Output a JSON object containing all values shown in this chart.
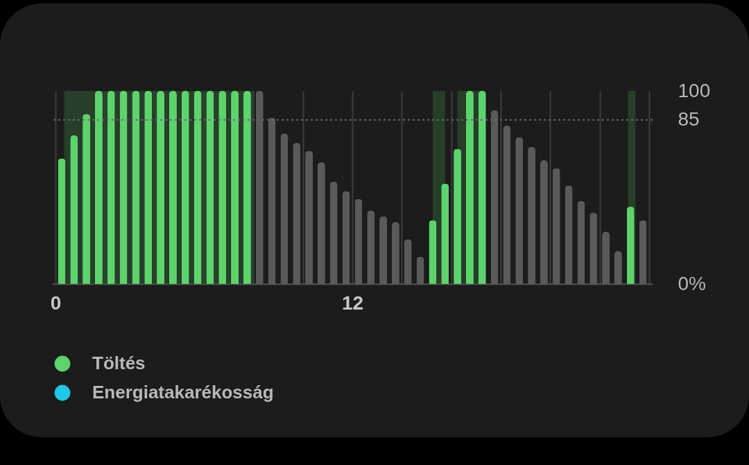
{
  "chart_data": {
    "type": "bar",
    "x": [
      0.25,
      0.75,
      1.25,
      1.75,
      2.25,
      2.75,
      3.25,
      3.75,
      4.25,
      4.75,
      5.25,
      5.75,
      6.25,
      6.75,
      7.25,
      7.75,
      8.25,
      8.75,
      9.25,
      9.75,
      10.25,
      10.75,
      11.25,
      11.75,
      12.25,
      12.75,
      13.25,
      13.75,
      14.25,
      14.75,
      15.25,
      15.75,
      16.25,
      16.75,
      17.25,
      17.75,
      18.25,
      18.75,
      19.25,
      19.75,
      20.25,
      20.75,
      21.25,
      21.75,
      22.25,
      22.75,
      23.25,
      23.75
    ],
    "series": [
      {
        "name": "Töltés",
        "color": "#5dd36c",
        "values": [
          65,
          77,
          88,
          100,
          100,
          100,
          100,
          100,
          100,
          100,
          100,
          100,
          100,
          100,
          100,
          100,
          null,
          null,
          null,
          null,
          null,
          null,
          null,
          null,
          null,
          null,
          null,
          null,
          null,
          null,
          33,
          52,
          70,
          100,
          100,
          null,
          null,
          null,
          null,
          null,
          null,
          null,
          null,
          null,
          null,
          null,
          40,
          null
        ]
      },
      {
        "name": "Energiatakarékosság",
        "color": "#1ec8e8",
        "values": [
          null,
          null,
          null,
          null,
          null,
          null,
          null,
          null,
          null,
          null,
          null,
          null,
          null,
          null,
          null,
          null,
          null,
          null,
          null,
          null,
          null,
          null,
          null,
          null,
          null,
          null,
          null,
          null,
          null,
          null,
          null,
          null,
          null,
          null,
          null,
          null,
          null,
          null,
          null,
          null,
          null,
          null,
          null,
          null,
          null,
          null,
          null,
          null
        ]
      },
      {
        "color": "#5a5a5a",
        "values": [
          null,
          null,
          null,
          null,
          null,
          null,
          null,
          null,
          null,
          null,
          null,
          null,
          null,
          null,
          null,
          null,
          100,
          86,
          78,
          73,
          69,
          63,
          53,
          48,
          44,
          38,
          35,
          32,
          23,
          14,
          null,
          null,
          null,
          null,
          null,
          90,
          82,
          76,
          71,
          64,
          60,
          51,
          43,
          37,
          27,
          17,
          null,
          33
        ]
      }
    ],
    "xlim": [
      0,
      24
    ],
    "xticks": [
      0,
      {
        "value": 2,
        "label": null
      },
      {
        "value": 4,
        "label": null
      },
      {
        "value": 6,
        "label": null
      },
      {
        "value": 8,
        "label": null
      },
      {
        "value": 10,
        "label": null
      },
      12,
      {
        "value": 14,
        "label": null
      },
      {
        "value": 16,
        "label": null
      },
      {
        "value": 18,
        "label": null
      },
      {
        "value": 20,
        "label": null
      },
      {
        "value": 22,
        "label": null
      },
      {
        "value": 24,
        "label": null
      }
    ],
    "ylim": [
      0,
      100
    ],
    "yticks": [
      {
        "value": 0,
        "label": "0%"
      },
      85,
      100
    ],
    "grid": "x",
    "legend": "bottom left",
    "ref_lines": [
      {
        "axis": "y",
        "value": 85,
        "color": "#6a6a6a",
        "line_style": "dotted"
      }
    ],
    "bands": [
      {
        "axis": "x",
        "from": 0.35,
        "to": 8,
        "color": "#2b4a2f"
      },
      {
        "axis": "x",
        "from": 15.25,
        "to": 15.75,
        "color": "#2b4a2f"
      },
      {
        "axis": "x",
        "from": 16.25,
        "to": 17.4,
        "color": "#2b4a2f"
      },
      {
        "axis": "x",
        "from": 23.15,
        "to": 23.45,
        "color": "#2b4a2f"
      }
    ]
  }
}
